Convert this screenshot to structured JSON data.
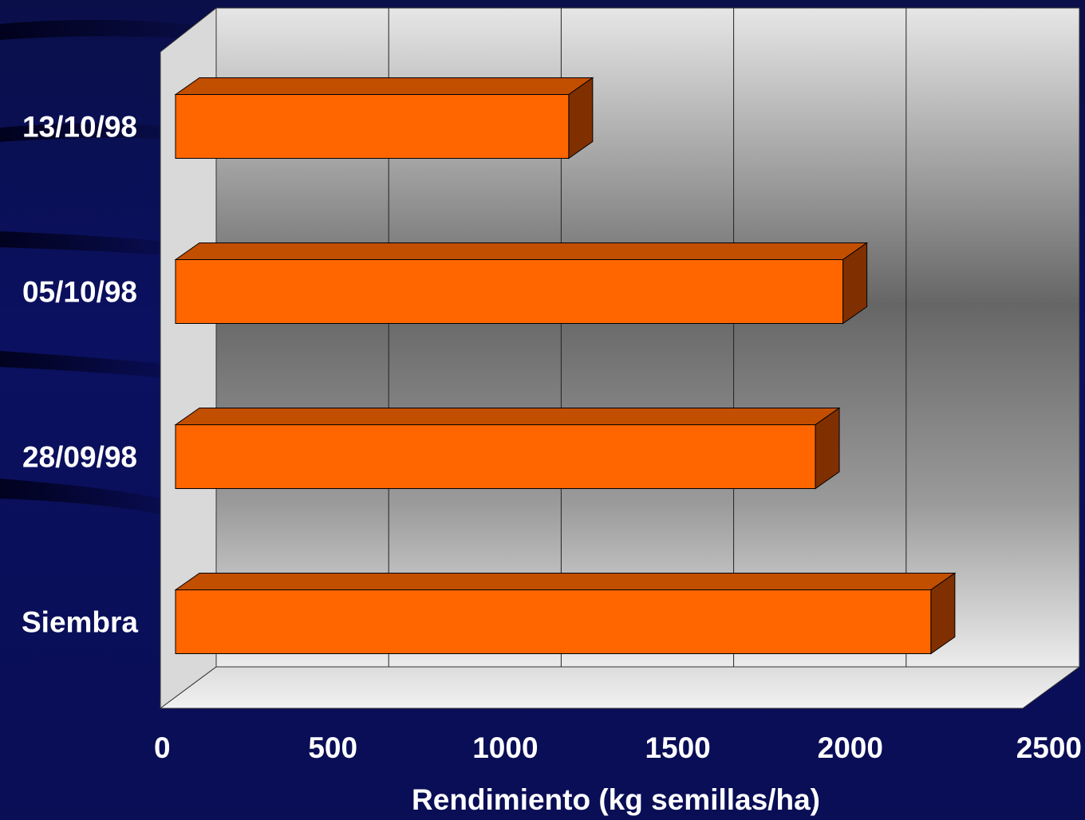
{
  "chart_data": {
    "type": "bar",
    "orientation": "horizontal",
    "style": "3d",
    "categories": [
      "Siembra",
      "28/09/98",
      "05/10/98",
      "13/10/98"
    ],
    "values": [
      2280,
      1945,
      2025,
      1230
    ],
    "xlabel": "Rendimiento (kg semillas/ha)",
    "ylabel": "",
    "xlim": [
      0,
      2500
    ],
    "xticks": [
      "0",
      "500",
      "1000",
      "1500",
      "2000",
      "2500"
    ],
    "grid": true,
    "colors": {
      "bar_front": "#ff6600",
      "bar_top": "#c24e00",
      "bar_side": "#803000",
      "text": "#ffffff"
    }
  }
}
